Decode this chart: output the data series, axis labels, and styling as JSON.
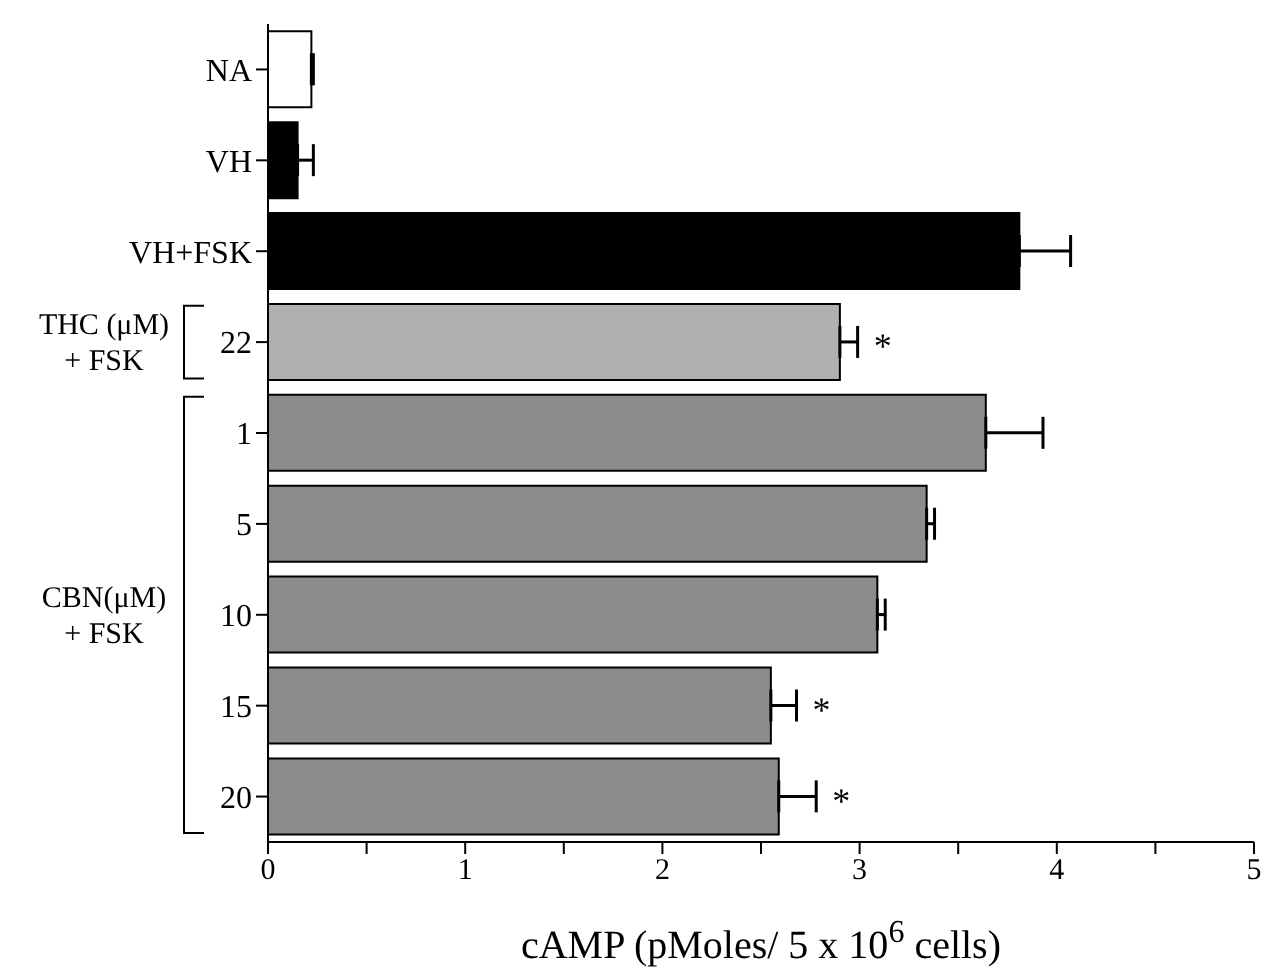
{
  "chart_data": {
    "type": "bar",
    "orientation": "horizontal",
    "categories": [
      "NA",
      "VH",
      "VH+FSK",
      "22",
      "1",
      "5",
      "10",
      "15",
      "20"
    ],
    "values": [
      0.22,
      0.15,
      3.81,
      2.9,
      3.64,
      3.34,
      3.09,
      2.55,
      2.59
    ],
    "colors": [
      "#ffffff",
      "#000000",
      "#000000",
      "#b0b0b0",
      "#8c8c8c",
      "#8c8c8c",
      "#8c8c8c",
      "#8c8c8c",
      "#8c8c8c"
    ],
    "errors": [
      [
        0.22,
        0.23
      ],
      [
        0.15,
        0.23
      ],
      [
        3.81,
        4.07
      ],
      [
        2.9,
        2.99
      ],
      [
        3.64,
        3.93
      ],
      [
        3.34,
        3.38
      ],
      [
        3.09,
        3.13
      ],
      [
        2.55,
        2.68
      ],
      [
        2.59,
        2.78
      ]
    ],
    "xlim": [
      0,
      5
    ],
    "xticks": [
      0,
      {
        "value": 0.5,
        "label": null
      },
      1,
      {
        "value": 1.5,
        "label": null
      },
      2,
      {
        "value": 2.5,
        "label": null
      },
      3,
      {
        "value": 3.5,
        "label": null
      },
      4,
      {
        "value": 4.5,
        "label": null
      },
      5
    ],
    "xlabel": "cAMP (pMoles/ 5 x 10$^{6}$ cells)",
    "annotations": [
      "THC (μM)\n+ FSK",
      "CBN(μM)\n+ FSK",
      {
        "text": "*",
        "x": 2.99,
        "y": "22"
      },
      {
        "text": "*",
        "x": 2.68,
        "y": "15"
      },
      {
        "text": "*",
        "x": 2.78,
        "y": "20"
      }
    ],
    "grid": false,
    "legend": false
  }
}
